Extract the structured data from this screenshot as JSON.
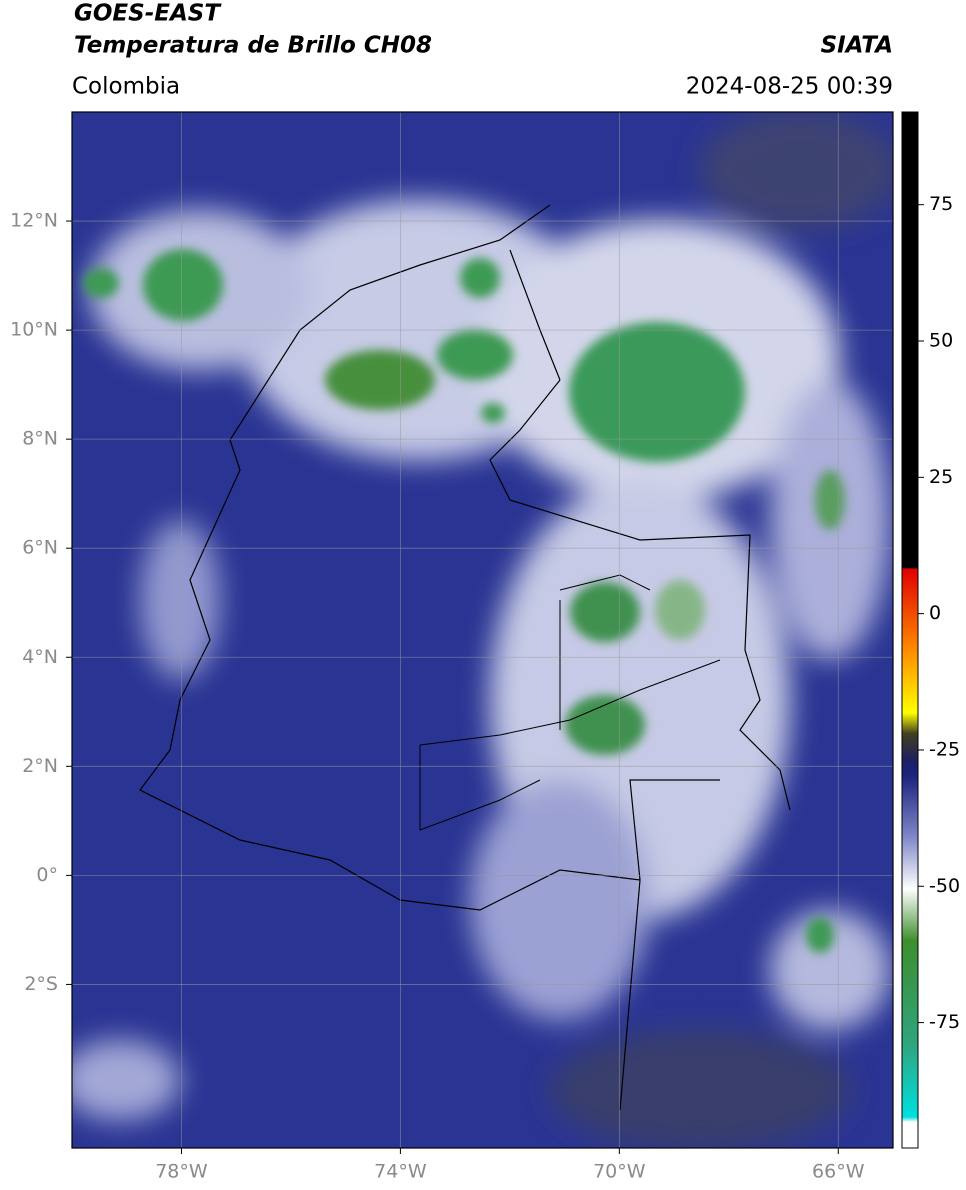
{
  "header": {
    "title_line1": "GOES-EAST",
    "title_line2": "Temperatura de Brillo CH08",
    "source": "SIATA",
    "region": "Colombia",
    "datetime": "2024-08-25 00:39"
  },
  "map": {
    "xlim": [
      -80,
      -65
    ],
    "ylim": [
      -5,
      14
    ],
    "xticks": [
      {
        "value": -78,
        "label": "78°W"
      },
      {
        "value": -74,
        "label": "74°W"
      },
      {
        "value": -70,
        "label": "70°W"
      },
      {
        "value": -66,
        "label": "66°W"
      }
    ],
    "yticks": [
      {
        "value": 12,
        "label": "12°N"
      },
      {
        "value": 10,
        "label": "10°N"
      },
      {
        "value": 8,
        "label": "8°N"
      },
      {
        "value": 6,
        "label": "6°N"
      },
      {
        "value": 4,
        "label": "4°N"
      },
      {
        "value": 2,
        "label": "2°N"
      },
      {
        "value": 0,
        "label": "0°"
      },
      {
        "value": -2,
        "label": "2°S"
      }
    ],
    "grid": true
  },
  "colorbar": {
    "range": [
      -98,
      92
    ],
    "ticks": [
      75,
      50,
      25,
      0,
      -25,
      -50,
      -75
    ]
  }
}
